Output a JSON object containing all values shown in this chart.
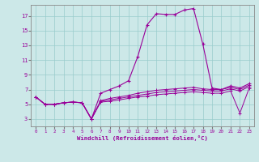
{
  "xlabel": "Windchill (Refroidissement éolien,°C)",
  "bg_color": "#cce8e8",
  "line_color": "#990099",
  "grid_color": "#99cccc",
  "x_ticks": [
    0,
    1,
    2,
    3,
    4,
    5,
    6,
    7,
    8,
    9,
    10,
    11,
    12,
    13,
    14,
    15,
    16,
    17,
    18,
    19,
    20,
    21,
    22,
    23
  ],
  "y_ticks": [
    3,
    5,
    7,
    9,
    11,
    13,
    15,
    17
  ],
  "xlim": [
    -0.5,
    23.5
  ],
  "ylim": [
    2.0,
    18.5
  ],
  "main_series": [
    6.0,
    5.0,
    5.0,
    5.2,
    5.3,
    5.2,
    3.0,
    6.5,
    7.0,
    7.5,
    8.2,
    11.5,
    15.8,
    17.3,
    17.2,
    17.2,
    17.8,
    18.0,
    13.2,
    7.2,
    7.0,
    7.5,
    7.2,
    7.8
  ],
  "flat_series": [
    [
      6.0,
      5.0,
      5.0,
      5.2,
      5.3,
      5.2,
      3.0,
      5.5,
      5.8,
      6.0,
      6.2,
      6.5,
      6.7,
      6.9,
      7.0,
      7.1,
      7.2,
      7.3,
      7.1,
      7.0,
      7.0,
      7.3,
      7.0,
      7.6
    ],
    [
      6.0,
      5.0,
      5.0,
      5.2,
      5.3,
      5.2,
      3.0,
      5.4,
      5.6,
      5.8,
      6.0,
      6.2,
      6.4,
      6.6,
      6.7,
      6.8,
      6.9,
      7.0,
      6.9,
      6.8,
      6.8,
      7.1,
      6.8,
      7.4
    ],
    [
      6.0,
      5.0,
      5.0,
      5.2,
      5.3,
      5.2,
      3.0,
      5.3,
      5.4,
      5.6,
      5.8,
      6.0,
      6.1,
      6.3,
      6.4,
      6.5,
      6.6,
      6.7,
      6.6,
      6.5,
      6.5,
      6.8,
      3.8,
      7.2
    ]
  ]
}
